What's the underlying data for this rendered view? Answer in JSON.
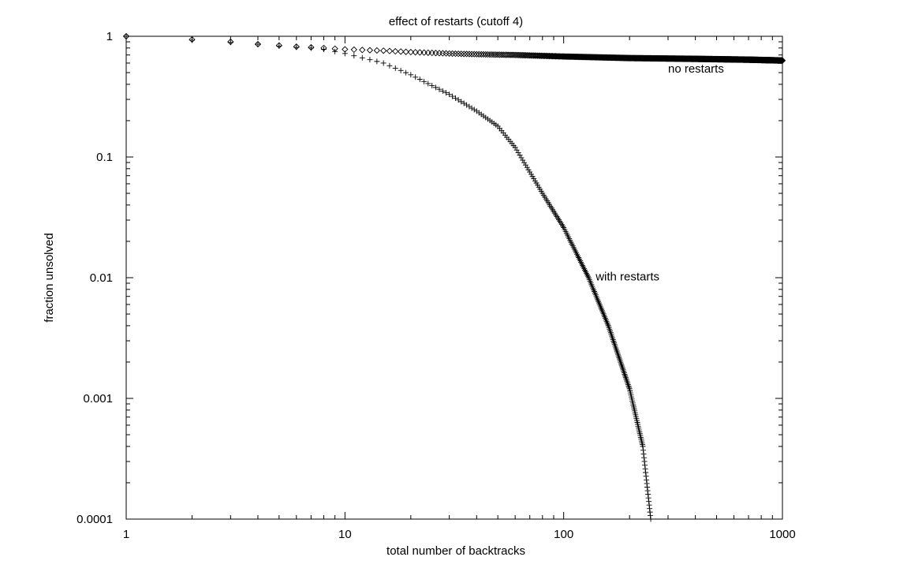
{
  "chart_data": {
    "type": "scatter",
    "title": "effect of restarts (cutoff 4)",
    "xlabel": "total number of backtracks",
    "ylabel": "fraction unsolved",
    "xscale": "log",
    "yscale": "log",
    "xlim": [
      1,
      1000
    ],
    "ylim": [
      0.0001,
      1
    ],
    "xticks": [
      "1",
      "10",
      "100",
      "1000"
    ],
    "yticks": [
      "0.0001",
      "0.001",
      "0.01",
      "0.1",
      "1"
    ],
    "grid": false,
    "legend": "none",
    "series": [
      {
        "name": "no restarts",
        "marker": "diamond",
        "color": "#000000",
        "points": [
          [
            1,
            1.0
          ],
          [
            2,
            0.94
          ],
          [
            3,
            0.9
          ],
          [
            4,
            0.86
          ],
          [
            5,
            0.84
          ],
          [
            6,
            0.82
          ],
          [
            7,
            0.81
          ],
          [
            8,
            0.8
          ],
          [
            10,
            0.78
          ],
          [
            15,
            0.76
          ],
          [
            20,
            0.74
          ],
          [
            30,
            0.72
          ],
          [
            40,
            0.71
          ],
          [
            60,
            0.7
          ],
          [
            100,
            0.68
          ],
          [
            200,
            0.66
          ],
          [
            400,
            0.65
          ],
          [
            700,
            0.64
          ],
          [
            1000,
            0.63
          ]
        ]
      },
      {
        "name": "with restarts",
        "marker": "plus",
        "color": "#000000",
        "points": [
          [
            1,
            1.0
          ],
          [
            2,
            0.93
          ],
          [
            3,
            0.89
          ],
          [
            4,
            0.86
          ],
          [
            5,
            0.83
          ],
          [
            6,
            0.81
          ],
          [
            7,
            0.8
          ],
          [
            8,
            0.78
          ],
          [
            10,
            0.72
          ],
          [
            15,
            0.6
          ],
          [
            20,
            0.48
          ],
          [
            30,
            0.33
          ],
          [
            40,
            0.24
          ],
          [
            50,
            0.18
          ],
          [
            60,
            0.12
          ],
          [
            80,
            0.05
          ],
          [
            100,
            0.026
          ],
          [
            130,
            0.01
          ],
          [
            160,
            0.004
          ],
          [
            200,
            0.0012
          ],
          [
            230,
            0.0004
          ],
          [
            250,
            0.0001
          ]
        ]
      }
    ],
    "annotations": [
      {
        "text": "no restarts",
        "x": 300,
        "y": 0.5
      },
      {
        "text": "with restarts",
        "x": 140,
        "y": 0.0095
      }
    ]
  }
}
